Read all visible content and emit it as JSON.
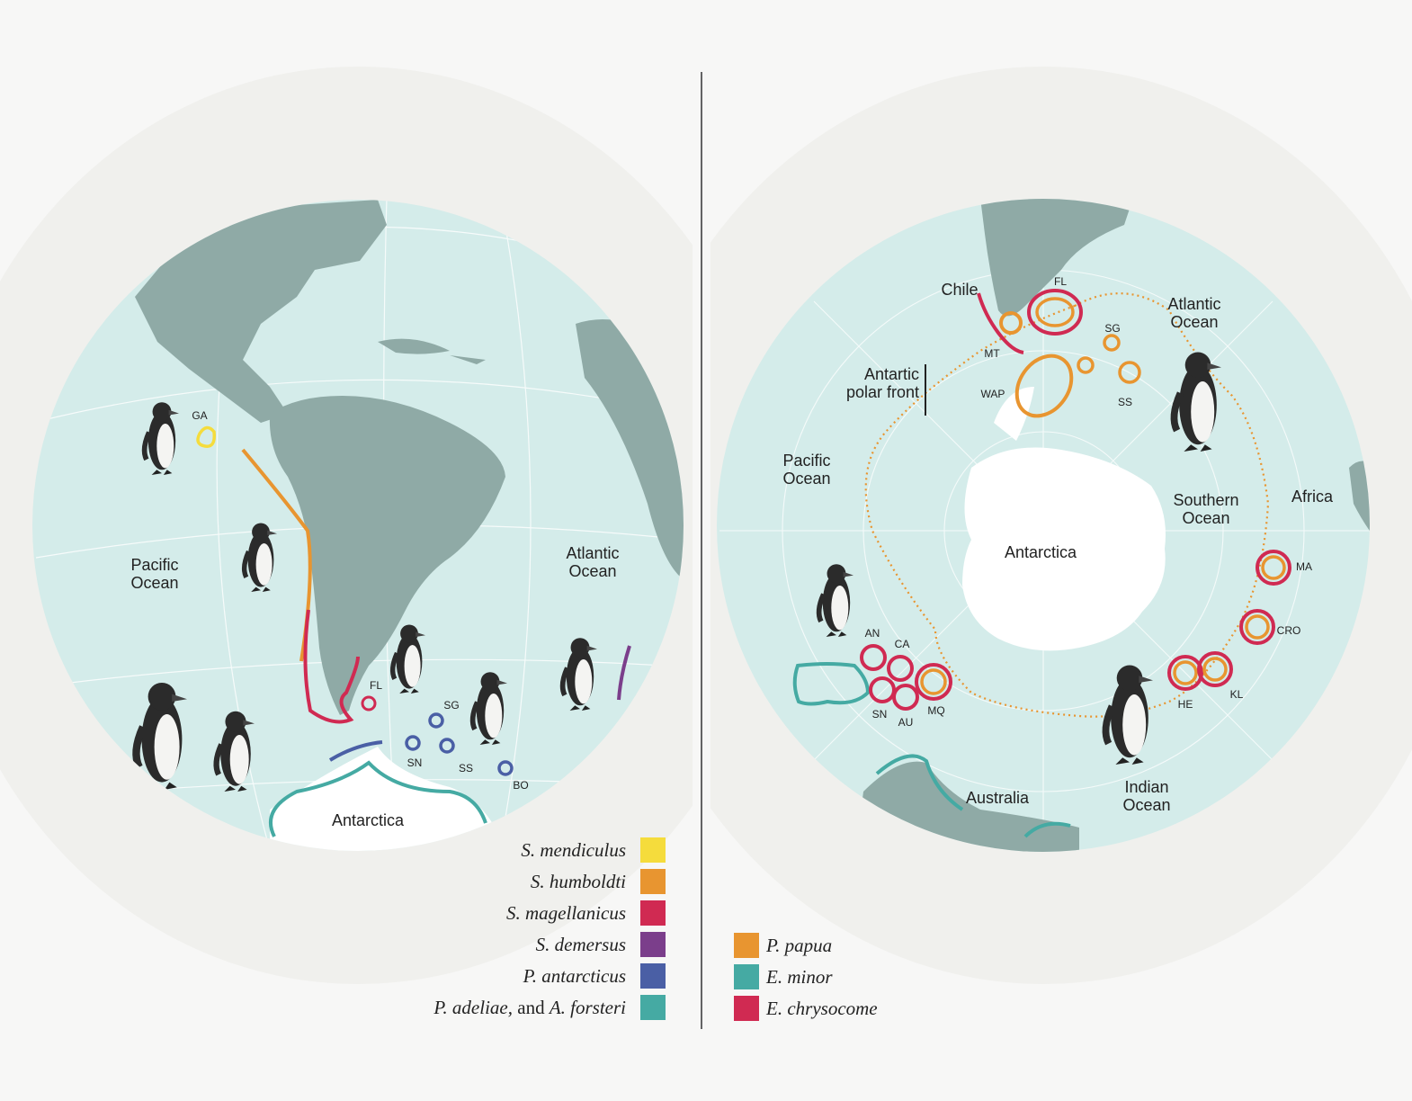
{
  "colors": {
    "background": "#f7f7f6",
    "halo": "#f0f0ed",
    "ocean": "#d4ecea",
    "land": "#8faaa6",
    "antarctica": "#ffffff",
    "divider": "#333333",
    "yellow": "#f5dc3c",
    "orange": "#e89530",
    "crimson": "#d02a52",
    "purple": "#7b3e8b",
    "blue": "#4a5fa5",
    "teal": "#45aaa3"
  },
  "left_map": {
    "oceans": [
      {
        "id": "pacific",
        "lines": [
          "Pacific",
          "Ocean"
        ]
      },
      {
        "id": "atlantic",
        "lines": [
          "Atlantic",
          "Ocean"
        ]
      }
    ],
    "continent_label": "Antarctica",
    "sites": [
      "GA",
      "FL",
      "SG",
      "SN",
      "SS",
      "BO"
    ],
    "icons": [
      "galapagos-penguin",
      "humboldt-penguin",
      "magellanic-penguin",
      "chinstrap-penguin",
      "african-penguin",
      "emperor-penguin",
      "adelie-penguin"
    ]
  },
  "right_map": {
    "labels": {
      "chile": "Chile",
      "atlantic": [
        "Atlantic",
        "Ocean"
      ],
      "polar_front": [
        "Antartic",
        "polar front"
      ],
      "pacific": [
        "Pacific",
        "Ocean"
      ],
      "southern": [
        "Southern",
        "Ocean"
      ],
      "africa": "Africa",
      "antarctica": "Antarctica",
      "australia": "Australia",
      "indian": [
        "Indian",
        "Ocean"
      ]
    },
    "sites": [
      "FL",
      "MT",
      "SG",
      "WAP",
      "SS",
      "MA",
      "CRO",
      "HE",
      "KL",
      "AN",
      "CA",
      "SN",
      "AU",
      "MQ"
    ],
    "icons": [
      "gentoo-penguin",
      "little-penguin",
      "rockhopper-penguin"
    ]
  },
  "legend_left": [
    {
      "id": "s-mendiculus",
      "text": "S. mendiculus",
      "color": "#f5dc3c"
    },
    {
      "id": "s-humboldti",
      "text": "S. humboldti",
      "color": "#e89530"
    },
    {
      "id": "s-magellanicus",
      "text": "S. magellanicus",
      "color": "#d02a52"
    },
    {
      "id": "s-demersus",
      "text": "S. demersus",
      "color": "#7b3e8b"
    },
    {
      "id": "p-antarcticus",
      "text": "P. antarcticus",
      "color": "#4a5fa5"
    },
    {
      "id": "p-adeliae",
      "text": "P. adeliae,",
      "text2": " and ",
      "text3": "A. forsteri",
      "color": "#45aaa3"
    }
  ],
  "legend_right": [
    {
      "id": "p-papua",
      "text": "P. papua",
      "color": "#e89530"
    },
    {
      "id": "e-minor",
      "text": "E. minor",
      "color": "#45aaa3"
    },
    {
      "id": "e-chrysocome",
      "text": "E. chrysocome",
      "color": "#d02a52"
    }
  ]
}
